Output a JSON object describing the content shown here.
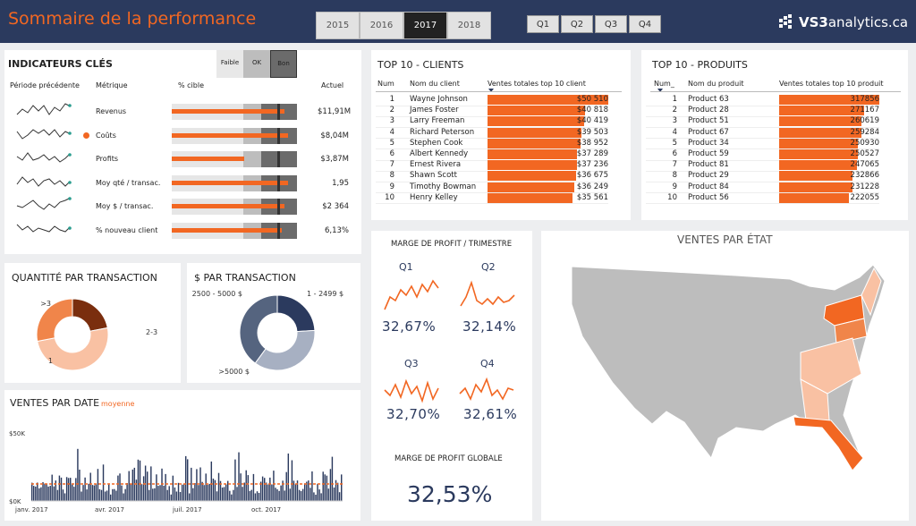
{
  "header": {
    "title": "Sommaire de la performance",
    "years": [
      "2015",
      "2016",
      "2017",
      "2018"
    ],
    "selected_year": "2017",
    "quarters": [
      "Q1",
      "Q2",
      "Q3",
      "Q4"
    ],
    "logo_prefix": "VS3",
    "logo_suffix": "analytics.ca"
  },
  "kpi": {
    "title": "INDICATEURS CLÉS",
    "legend": [
      "Faible",
      "OK",
      "Bon"
    ],
    "col_prev": "Période précédente",
    "col_metric": "Métrique",
    "col_target": "% cible",
    "col_actual": "Actuel",
    "rows": [
      {
        "name": "Revenus",
        "actual": "$11,91M",
        "fill": 0.9,
        "dot": false
      },
      {
        "name": "Coûts",
        "actual": "$8,04M",
        "fill": 0.93,
        "dot": true
      },
      {
        "name": "Profits",
        "actual": "$3,87M",
        "fill": 0.58,
        "dot": false
      },
      {
        "name": "Moy qté / transac.",
        "actual": "1,95",
        "fill": 0.93,
        "dot": false
      },
      {
        "name": "Moy $ / transac.",
        "actual": "$2 364",
        "fill": 0.9,
        "dot": false
      },
      {
        "name": "% nouveau client",
        "actual": "6,13%",
        "fill": 0.88,
        "dot": false
      }
    ]
  },
  "clients": {
    "title": "TOP 10 - CLIENTS",
    "col_num": "Num",
    "col_name": "Nom du client",
    "col_sales": "Ventes totales top 10 client",
    "rows": [
      {
        "n": "1",
        "name": "Wayne Johnson",
        "v": "$50 510",
        "f": 1.0
      },
      {
        "n": "2",
        "name": "James Foster",
        "v": "$40 818",
        "f": 0.81
      },
      {
        "n": "3",
        "name": "Larry Freeman",
        "v": "$40 419",
        "f": 0.8
      },
      {
        "n": "4",
        "name": "Richard Peterson",
        "v": "$39 503",
        "f": 0.78
      },
      {
        "n": "5",
        "name": "Stephen Cook",
        "v": "$38 952",
        "f": 0.77
      },
      {
        "n": "6",
        "name": "Albert Kennedy",
        "v": "$37 289",
        "f": 0.74
      },
      {
        "n": "7",
        "name": "Ernest Rivera",
        "v": "$37 236",
        "f": 0.74
      },
      {
        "n": "8",
        "name": "Shawn Scott",
        "v": "$36 675",
        "f": 0.73
      },
      {
        "n": "9",
        "name": "Timothy Bowman",
        "v": "$36 249",
        "f": 0.72
      },
      {
        "n": "10",
        "name": "Henry Kelley",
        "v": "$35 561",
        "f": 0.7
      }
    ]
  },
  "products": {
    "title": "TOP 10 - PRODUITS",
    "col_num": "Num_",
    "col_name": "Nom du produit",
    "col_sales": "Ventes totales top 10 produit",
    "rows": [
      {
        "n": "1",
        "name": "Product 63",
        "v": "317856",
        "f": 1.0
      },
      {
        "n": "2",
        "name": "Product 28",
        "v": "271167",
        "f": 0.85
      },
      {
        "n": "3",
        "name": "Product 51",
        "v": "260619",
        "f": 0.82
      },
      {
        "n": "4",
        "name": "Product 67",
        "v": "259284",
        "f": 0.82
      },
      {
        "n": "5",
        "name": "Product 34",
        "v": "250930",
        "f": 0.79
      },
      {
        "n": "6",
        "name": "Product 59",
        "v": "250527",
        "f": 0.79
      },
      {
        "n": "7",
        "name": "Product 81",
        "v": "247065",
        "f": 0.78
      },
      {
        "n": "8",
        "name": "Product 29",
        "v": "232866",
        "f": 0.73
      },
      {
        "n": "9",
        "name": "Product 84",
        "v": "231228",
        "f": 0.73
      },
      {
        "n": "10",
        "name": "Product 56",
        "v": "222055",
        "f": 0.7
      }
    ]
  },
  "margin": {
    "title": "MARGE DE PROFIT / TRIMESTRE",
    "global_title": "MARGE DE PROFIT GLOBALE",
    "global": "32,53%",
    "quarters": [
      {
        "label": "Q1",
        "value": "32,67%"
      },
      {
        "label": "Q2",
        "value": "32,14%"
      },
      {
        "label": "Q3",
        "value": "32,70%"
      },
      {
        "label": "Q4",
        "value": "32,61%"
      }
    ]
  },
  "map": {
    "title": "VENTES PAR ÉTAT"
  },
  "qty": {
    "title": "QUANTITÉ PAR TRANSACTION"
  },
  "amt": {
    "title": "$ PAR TRANSACTION"
  },
  "date": {
    "title": "VENTES PAR DATE",
    "legend": "moyenne",
    "y_top": "$50K",
    "y_bot": "$0K",
    "x_labels": [
      "janv. 2017",
      "avr. 2017",
      "juil. 2017",
      "oct. 2017"
    ]
  },
  "chart_data": [
    {
      "type": "pie",
      "title": "QUANTITÉ PAR TRANSACTION",
      "categories": [
        ">3",
        "2-3",
        "1"
      ],
      "values": [
        22,
        50,
        28
      ],
      "colors": [
        "#7a2e0e",
        "#f9c1a3",
        "#f0854a"
      ]
    },
    {
      "type": "pie",
      "title": "$ PAR TRANSACTION",
      "categories": [
        "2500 - 5000 $",
        "1 - 2499 $",
        ">5000 $"
      ],
      "values": [
        24,
        36,
        40
      ],
      "colors": [
        "#2b3a5e",
        "#a7b0c2",
        "#55647f"
      ]
    },
    {
      "type": "bar",
      "title": "VENTES PAR DATE",
      "ylim": [
        0,
        50000
      ],
      "average": 12500,
      "x": [
        "janv. 2017",
        "avr. 2017",
        "juil. 2017",
        "oct. 2017"
      ]
    }
  ]
}
